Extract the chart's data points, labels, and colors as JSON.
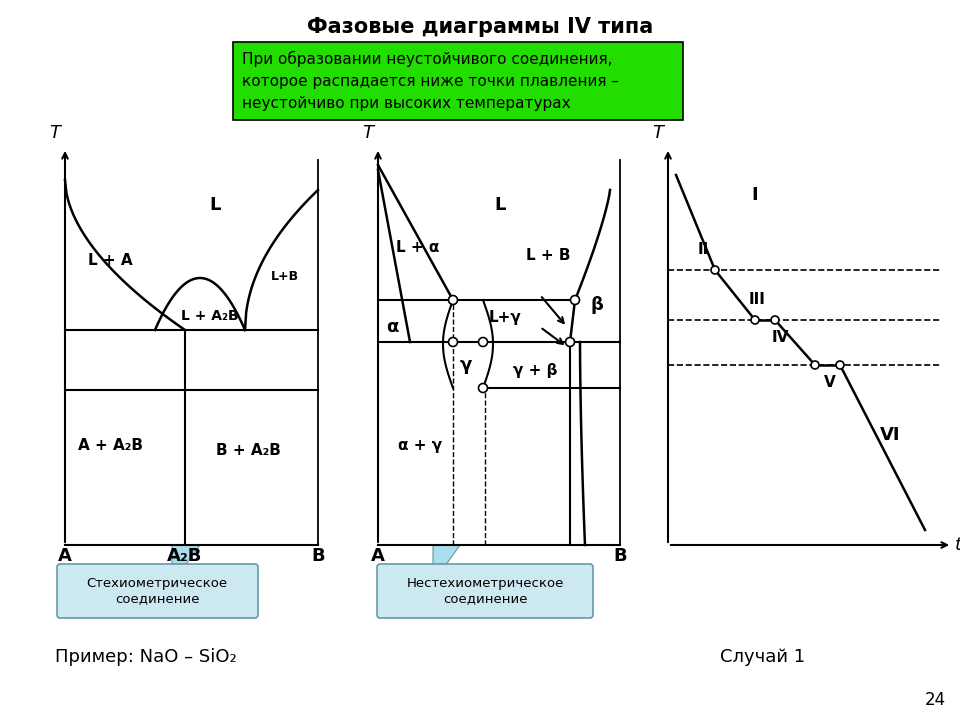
{
  "title": "Фазовые диаграммы IV типа",
  "title_fontsize": 15,
  "green_box_text": "При образовании неустойчивого соединения,\nкоторое распадается ниже точки плавления –\nнеустойчиво при высоких температурах",
  "subtitle_case": "Случай 1",
  "example_text": "Пример: NaO – SiO₂",
  "page_number": "24",
  "box1_label": "Стехиометрическое\nсоединение",
  "box2_label": "Нестехиометрическое\nсоединение",
  "background_color": "#ffffff",
  "green_color": "#22dd00",
  "light_blue_color": "#aaddee"
}
